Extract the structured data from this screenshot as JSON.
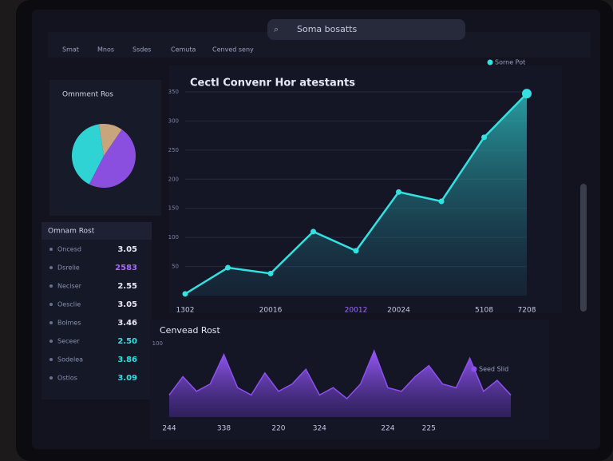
{
  "nav": {
    "tabs": [
      "Smat",
      "Mnos",
      "Ssdes",
      "Cemuta",
      "Cenved seny"
    ],
    "search": "Soma bosatts"
  },
  "sidebar": {
    "list": {
      "title": "Omnam Rost",
      "rows": [
        {
          "label": "Oncesd",
          "value": "3.05"
        },
        {
          "label": "Dsrelie",
          "value": "2583"
        },
        {
          "label": "Neciser",
          "value": "2.55"
        },
        {
          "label": "Oesclie",
          "value": "3.05"
        },
        {
          "label": "Bolmes",
          "value": "3.46"
        },
        {
          "label": "Seceer",
          "value": "2.50"
        },
        {
          "label": "Sodelea",
          "value": "3.86"
        },
        {
          "label": "Ostlos",
          "value": "3.09"
        }
      ]
    }
  },
  "chart_data": [
    {
      "type": "pie",
      "title": "Omnment Ros",
      "values": [
        48,
        40,
        12
      ],
      "colors": [
        "#8b4fe0",
        "#2fd3d3",
        "#c9a57e"
      ]
    },
    {
      "type": "line",
      "title": "Cectl Convenr Hor atestants",
      "categories": [
        "1302",
        null,
        "20016",
        null,
        "20012",
        "20024",
        null,
        "5108",
        "7208"
      ],
      "series": [
        {
          "name": "Sorne Pot",
          "color": "#35e0e0",
          "values": [
            3,
            48,
            38,
            110,
            77,
            178,
            162,
            272,
            347
          ]
        }
      ],
      "ylim": [
        0,
        350
      ],
      "yticks": [
        50,
        100,
        150,
        200,
        250,
        300,
        350
      ],
      "grid": true
    },
    {
      "type": "area",
      "title": "Cenvead Rost",
      "categories": [
        "244",
        null,
        null,
        null,
        "338",
        null,
        null,
        null,
        "220",
        null,
        null,
        "324",
        null,
        null,
        null,
        null,
        "224",
        null,
        null,
        "225",
        null,
        null,
        null,
        null,
        null,
        null
      ],
      "series": [
        {
          "name": "Seed Slid",
          "color": "#8e4ff0",
          "values": [
            30,
            55,
            35,
            45,
            85,
            40,
            30,
            60,
            35,
            45,
            65,
            30,
            40,
            25,
            45,
            90,
            40,
            35,
            55,
            70,
            45,
            40,
            80,
            35,
            50,
            30
          ]
        }
      ],
      "ylim": [
        0,
        100
      ],
      "yticks": [
        100
      ],
      "grid": false
    }
  ]
}
